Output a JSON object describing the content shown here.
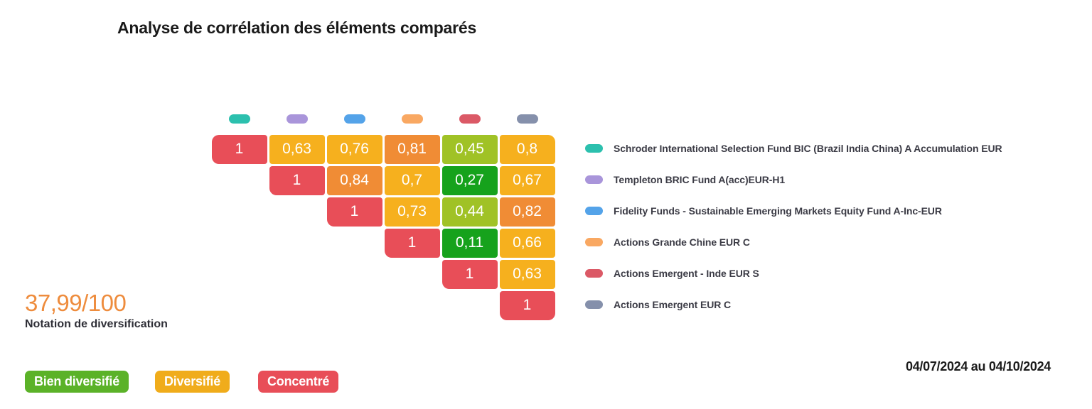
{
  "title": "Analyse de corrélation des éléments comparés",
  "score": {
    "value": "37,99/100",
    "label": "Notation de diversification"
  },
  "date_range": "04/07/2024 au 04/10/2024",
  "chart_data": {
    "type": "heatmap",
    "title": "Analyse de corrélation des éléments comparés",
    "description": "Upper-triangular correlation matrix of 6 compared funds; decimal comma display; color scale from green (low correlation) to red (high correlation)",
    "items": [
      {
        "label": "Schroder International Selection Fund BIC (Brazil India China) A Accumulation EUR",
        "color": "#2cc0ae"
      },
      {
        "label": "Templeton BRIC Fund A(acc)EUR-H1",
        "color": "#a995da"
      },
      {
        "label": "Fidelity Funds - Sustainable Emerging Markets Equity Fund A-Inc-EUR",
        "color": "#54a3e9"
      },
      {
        "label": "Actions Grande Chine EUR C",
        "color": "#f9a862"
      },
      {
        "label": "Actions Emergent - Inde EUR S",
        "color": "#db5966"
      },
      {
        "label": "Actions Emergent EUR C",
        "color": "#8590ab"
      }
    ],
    "matrix_display": [
      [
        "1",
        "0,63",
        "0,76",
        "0,81",
        "0,45",
        "0,8"
      ],
      [
        null,
        "1",
        "0,84",
        "0,7",
        "0,27",
        "0,67"
      ],
      [
        null,
        null,
        "1",
        "0,73",
        "0,44",
        "0,82"
      ],
      [
        null,
        null,
        null,
        "1",
        "0,11",
        "0,66"
      ],
      [
        null,
        null,
        null,
        null,
        "1",
        "0,63"
      ],
      [
        null,
        null,
        null,
        null,
        null,
        "1"
      ]
    ],
    "matrix_values": [
      [
        1,
        0.63,
        0.76,
        0.81,
        0.45,
        0.8
      ],
      [
        null,
        1,
        0.84,
        0.7,
        0.27,
        0.67
      ],
      [
        null,
        null,
        1,
        0.73,
        0.44,
        0.82
      ],
      [
        null,
        null,
        null,
        1,
        0.11,
        0.66
      ],
      [
        null,
        null,
        null,
        null,
        1,
        0.63
      ],
      [
        null,
        null,
        null,
        null,
        null,
        1
      ]
    ],
    "cell_colors": [
      [
        "#e84e58",
        "#f6b01e",
        "#f6b01e",
        "#f08c35",
        "#a0c226",
        "#f6b01e"
      ],
      [
        null,
        "#e84e58",
        "#f08c35",
        "#f6b01e",
        "#16a21c",
        "#f6b01e"
      ],
      [
        null,
        null,
        "#e84e58",
        "#f6b01e",
        "#a0c226",
        "#f08c35"
      ],
      [
        null,
        null,
        null,
        "#e84e58",
        "#16a21c",
        "#f6b01e"
      ],
      [
        null,
        null,
        null,
        null,
        "#e84e58",
        "#f6b01e"
      ],
      [
        null,
        null,
        null,
        null,
        null,
        "#e84e58"
      ]
    ],
    "legend_position": "right"
  },
  "diversification_legend": [
    {
      "label": "Bien diversifié",
      "color": "#5bb228"
    },
    {
      "label": "Diversifié",
      "color": "#f0ac1b"
    },
    {
      "label": "Concentré",
      "color": "#e84e58"
    }
  ]
}
